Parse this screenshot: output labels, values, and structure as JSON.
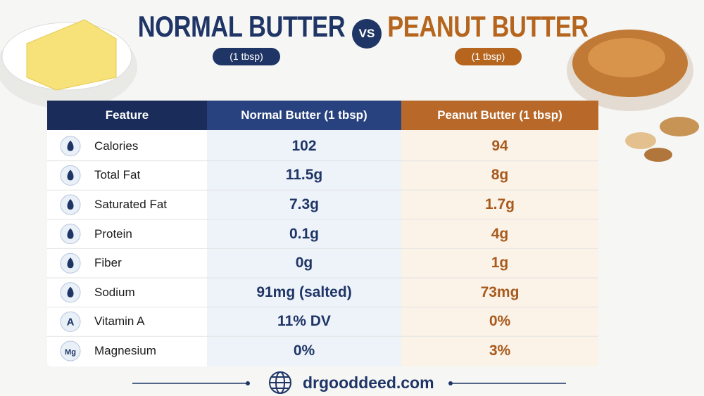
{
  "header": {
    "left_title": "NORMAL BUTTER",
    "left_subtitle": "(1 tbsp)",
    "vs": "VS",
    "right_title": "PEANUT BUTTER",
    "right_subtitle": "(1 tbsp)"
  },
  "table": {
    "columns": [
      "Feature",
      "Normal Butter (1 tbsp)",
      "Peanut Butter (1 tbsp)"
    ],
    "rows": [
      {
        "feature": "Calories",
        "normal": "102",
        "peanut": "94"
      },
      {
        "feature": "Total Fat",
        "normal": "11.5g",
        "peanut": "8g"
      },
      {
        "feature": "Saturated Fat",
        "normal": "7.3g",
        "peanut": "1.7g"
      },
      {
        "feature": "Protein",
        "normal": "0.1g",
        "peanut": "4g"
      },
      {
        "feature": "Fiber",
        "normal": "0g",
        "peanut": "1g"
      },
      {
        "feature": "Sodium",
        "normal": "91mg (salted)",
        "peanut": "73mg"
      },
      {
        "icon": "A",
        "feature": "Vitamin A",
        "normal": "11% DV",
        "peanut": "0%"
      },
      {
        "icon": "Mg",
        "feature": "Magnesium",
        "normal": "0%",
        "peanut": "3%"
      }
    ]
  },
  "footer": {
    "website": "drgooddeed.com"
  }
}
